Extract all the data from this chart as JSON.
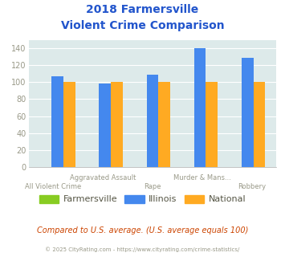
{
  "title_line1": "2018 Farmersville",
  "title_line2": "Violent Crime Comparison",
  "series": {
    "Farmersville": [
      0,
      0,
      0,
      0,
      0
    ],
    "Illinois": [
      107,
      98,
      109,
      140,
      129
    ],
    "National": [
      100,
      100,
      100,
      100,
      100
    ]
  },
  "colors": {
    "Farmersville": "#88cc22",
    "Illinois": "#4488ee",
    "National": "#ffaa22"
  },
  "top_labels": [
    "",
    "Aggravated Assault",
    "",
    "Murder & Mans...",
    ""
  ],
  "bot_labels": [
    "All Violent Crime",
    "",
    "Rape",
    "",
    "Robbery"
  ],
  "ylim": [
    0,
    150
  ],
  "yticks": [
    0,
    20,
    40,
    60,
    80,
    100,
    120,
    140
  ],
  "title_color": "#2255cc",
  "axis_label_color": "#999988",
  "plot_bg_color": "#ddeaea",
  "footer_text": "Compared to U.S. average. (U.S. average equals 100)",
  "footer_color": "#cc4400",
  "copyright_text": "© 2025 CityRating.com - https://www.cityrating.com/crime-statistics/",
  "copyright_color": "#999988",
  "bar_width": 0.25
}
